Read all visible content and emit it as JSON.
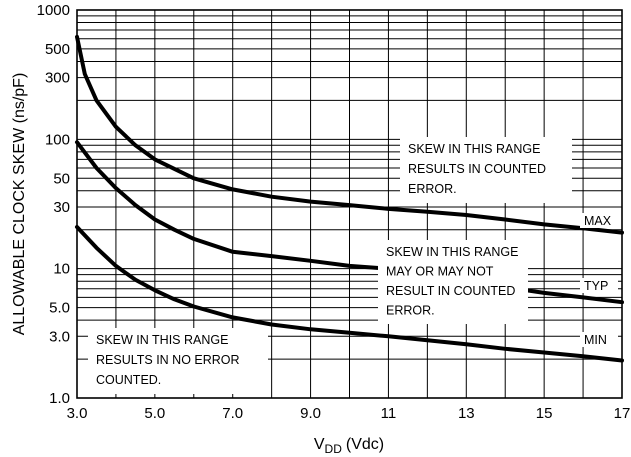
{
  "chart_data": {
    "type": "line",
    "title": "",
    "xlabel_main": "V",
    "xlabel_sub": "DD",
    "xlabel_unit": "(Vdc)",
    "ylabel": "ALLOWABLE CLOCK SKEW (ns/pF)",
    "xlim": [
      3.0,
      17.0
    ],
    "ylim": [
      1.0,
      1000
    ],
    "yscale": "log",
    "grid": true,
    "x_ticks": [
      "3.0",
      "5.0",
      "7.0",
      "9.0",
      "11",
      "13",
      "15",
      "17"
    ],
    "x_tick_values": [
      3,
      5,
      7,
      9,
      11,
      13,
      15,
      17
    ],
    "y_ticks": [
      "1000",
      "500",
      "300",
      "100",
      "50",
      "30",
      "10",
      "5.0",
      "3.0",
      "1.0"
    ],
    "y_tick_values": [
      1000,
      500,
      300,
      100,
      50,
      30,
      10,
      5,
      3,
      1
    ],
    "series": [
      {
        "name": "MAX",
        "x": [
          3.0,
          3.2,
          3.5,
          4.0,
          4.5,
          5.0,
          6.0,
          7.0,
          8.0,
          9.0,
          10.0,
          11.0,
          12.0,
          13.0,
          14.0,
          15.0,
          16.0,
          17.0
        ],
        "values": [
          620,
          320,
          200,
          125,
          90,
          70,
          50,
          41,
          36,
          33,
          31,
          29,
          27.5,
          26,
          24,
          22,
          20.5,
          19
        ]
      },
      {
        "name": "TYP",
        "x": [
          3.0,
          3.5,
          4.0,
          4.5,
          5.0,
          5.5,
          6.0,
          7.0,
          8.0,
          9.0,
          10.0,
          11.0,
          12.0,
          13.0,
          14.0,
          15.0,
          16.0,
          17.0
        ],
        "values": [
          95,
          60,
          42,
          31,
          24,
          20,
          17,
          13.5,
          12.5,
          11.5,
          10.5,
          10,
          9,
          8,
          7.2,
          6.5,
          6,
          5.5
        ]
      },
      {
        "name": "MIN",
        "x": [
          3.0,
          3.5,
          4.0,
          4.5,
          5.0,
          5.5,
          6.0,
          7.0,
          8.0,
          9.0,
          10.0,
          11.0,
          12.0,
          13.0,
          14.0,
          15.0,
          16.0,
          17.0
        ],
        "values": [
          21,
          14.5,
          10.5,
          8.2,
          6.8,
          5.8,
          5.1,
          4.2,
          3.7,
          3.4,
          3.2,
          3.0,
          2.8,
          2.6,
          2.4,
          2.25,
          2.1,
          1.95
        ]
      }
    ],
    "annotations": [
      {
        "lines": [
          "SKEW IN THIS RANGE",
          "RESULTS IN COUNTED",
          "ERROR."
        ]
      },
      {
        "lines": [
          "SKEW IN THIS RANGE",
          "MAY OR MAY NOT",
          "RESULT IN COUNTED",
          "ERROR."
        ]
      },
      {
        "lines": [
          "SKEW IN THIS RANGE",
          "RESULTS IN NO ERROR",
          "COUNTED."
        ]
      }
    ]
  }
}
